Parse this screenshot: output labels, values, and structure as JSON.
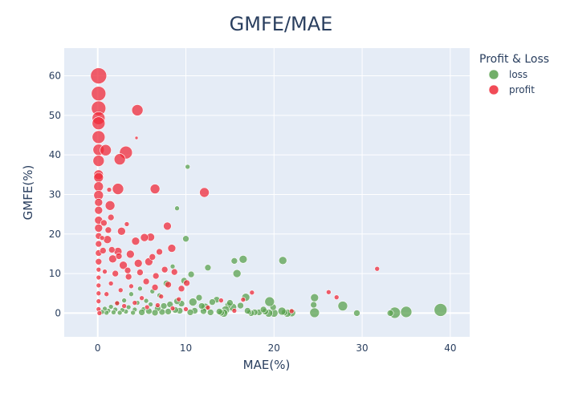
{
  "chart_data": {
    "type": "scatter",
    "title": "GMFE/MAE",
    "xlabel": "MAE(%)",
    "ylabel": "GMFE(%)",
    "xlim": [
      -3.8,
      42.2
    ],
    "ylim": [
      -6,
      67
    ],
    "xticks": [
      0,
      10,
      20,
      30,
      40
    ],
    "yticks": [
      0,
      10,
      20,
      30,
      40,
      50,
      60
    ],
    "grid": true,
    "legend": {
      "title": "Profit & Loss",
      "placement": "top-right outside"
    },
    "colors": {
      "loss": "#59a14f",
      "profit": "#ef2b3a",
      "plot_bg": "#e5ecf6",
      "text": "#2a3f5f"
    },
    "series": [
      {
        "name": "loss",
        "color": "#59a14f",
        "points": [
          [
            38.9,
            0.8,
            8
          ],
          [
            35.0,
            0.3,
            7
          ],
          [
            33.7,
            0.1,
            7
          ],
          [
            33.2,
            0.0,
            4
          ],
          [
            29.4,
            0.0,
            4
          ],
          [
            27.8,
            1.8,
            6
          ],
          [
            24.6,
            3.9,
            5
          ],
          [
            24.5,
            2.1,
            4
          ],
          [
            24.6,
            0.1,
            6
          ],
          [
            22.0,
            0.1,
            5
          ],
          [
            21.5,
            0.0,
            5
          ],
          [
            21.2,
            0.2,
            4
          ],
          [
            21.0,
            13.3,
            5
          ],
          [
            20.9,
            0.5,
            5
          ],
          [
            20.0,
            0.0,
            5
          ],
          [
            19.9,
            1.5,
            4
          ],
          [
            19.5,
            2.9,
            6
          ],
          [
            19.4,
            0.0,
            5
          ],
          [
            19.0,
            0.4,
            4
          ],
          [
            18.3,
            0.2,
            4
          ],
          [
            17.8,
            0.2,
            4
          ],
          [
            17.4,
            0.0,
            4
          ],
          [
            17.2,
            0.2,
            3
          ],
          [
            16.8,
            4.0,
            5
          ],
          [
            16.5,
            13.6,
            5
          ],
          [
            16.2,
            1.9,
            4
          ],
          [
            15.8,
            10.0,
            5
          ],
          [
            15.5,
            13.2,
            4
          ],
          [
            15.3,
            1.5,
            5
          ],
          [
            14.8,
            2.0,
            4
          ],
          [
            14.5,
            0.8,
            5
          ],
          [
            14.3,
            0.0,
            5
          ],
          [
            14.0,
            0.1,
            4
          ],
          [
            13.5,
            3.4,
            4
          ],
          [
            13.0,
            2.8,
            4
          ],
          [
            12.8,
            0.2,
            4
          ],
          [
            12.5,
            11.5,
            4
          ],
          [
            12.2,
            1.5,
            5
          ],
          [
            12.0,
            0.5,
            4
          ],
          [
            11.5,
            3.9,
            4
          ],
          [
            11.0,
            0.6,
            4
          ],
          [
            10.8,
            2.8,
            5
          ],
          [
            10.5,
            0.2,
            4
          ],
          [
            10.2,
            37.0,
            3
          ],
          [
            10.0,
            18.8,
            4
          ],
          [
            9.8,
            8.2,
            4
          ],
          [
            9.5,
            2.4,
            4
          ],
          [
            9.3,
            0.6,
            4
          ],
          [
            9.0,
            26.5,
            3
          ],
          [
            9.0,
            3.0,
            4
          ],
          [
            8.8,
            0.8,
            4
          ],
          [
            8.5,
            11.8,
            3
          ],
          [
            8.2,
            2.2,
            4
          ],
          [
            8.0,
            0.4,
            4
          ],
          [
            7.8,
            7.5,
            4
          ],
          [
            7.5,
            1.8,
            4
          ],
          [
            7.3,
            0.3,
            4
          ],
          [
            7.0,
            4.5,
            3
          ],
          [
            6.8,
            1.2,
            4
          ],
          [
            6.5,
            0.1,
            4
          ],
          [
            6.2,
            5.5,
            3
          ],
          [
            6.0,
            2.2,
            3
          ],
          [
            5.8,
            0.5,
            4
          ],
          [
            5.5,
            3.1,
            3
          ],
          [
            5.2,
            1.0,
            3
          ],
          [
            5.0,
            0.2,
            4
          ],
          [
            4.8,
            6.2,
            3
          ],
          [
            4.5,
            2.6,
            3
          ],
          [
            4.2,
            0.9,
            3
          ],
          [
            4.0,
            0.1,
            3
          ],
          [
            3.8,
            4.8,
            3
          ],
          [
            3.5,
            1.5,
            3
          ],
          [
            3.2,
            0.4,
            3
          ],
          [
            3.0,
            3.2,
            3
          ],
          [
            2.8,
            0.8,
            3
          ],
          [
            2.5,
            0.1,
            3
          ],
          [
            2.2,
            2.5,
            3
          ],
          [
            2.0,
            0.9,
            3
          ],
          [
            1.8,
            0.2,
            3
          ],
          [
            1.5,
            1.6,
            3
          ],
          [
            1.2,
            0.6,
            3
          ],
          [
            1.0,
            0.1,
            3
          ],
          [
            0.8,
            1.1,
            3
          ],
          [
            0.5,
            0.3,
            3
          ],
          [
            10.6,
            9.8,
            4
          ],
          [
            11.8,
            1.8,
            4
          ],
          [
            13.8,
            0.4,
            4
          ],
          [
            15.0,
            2.6,
            4
          ],
          [
            17.0,
            0.6,
            4
          ],
          [
            18.8,
            0.9,
            4
          ]
        ]
      },
      {
        "name": "profit",
        "color": "#ef2b3a",
        "points": [
          [
            0.1,
            60.0,
            10
          ],
          [
            0.1,
            55.5,
            9
          ],
          [
            0.1,
            51.8,
            9
          ],
          [
            0.1,
            49.3,
            8
          ],
          [
            0.1,
            48.0,
            8
          ],
          [
            0.1,
            44.5,
            8
          ],
          [
            0.1,
            41.3,
            7
          ],
          [
            0.1,
            38.5,
            7
          ],
          [
            0.1,
            35.0,
            6
          ],
          [
            0.1,
            34.3,
            6
          ],
          [
            0.1,
            32.0,
            6
          ],
          [
            0.1,
            29.8,
            6
          ],
          [
            0.1,
            28.0,
            5
          ],
          [
            0.1,
            26.0,
            5
          ],
          [
            0.1,
            23.5,
            5
          ],
          [
            0.1,
            21.5,
            5
          ],
          [
            0.1,
            19.5,
            4
          ],
          [
            0.1,
            17.5,
            4
          ],
          [
            0.1,
            15.2,
            4
          ],
          [
            0.1,
            13.0,
            4
          ],
          [
            0.1,
            11.0,
            3
          ],
          [
            0.1,
            9.0,
            3
          ],
          [
            0.1,
            7.0,
            3
          ],
          [
            0.1,
            5.0,
            3
          ],
          [
            0.1,
            3.0,
            3
          ],
          [
            0.1,
            1.0,
            3
          ],
          [
            0.2,
            0.0,
            3
          ],
          [
            4.5,
            51.3,
            7
          ],
          [
            3.2,
            40.6,
            8
          ],
          [
            0.9,
            41.2,
            7
          ],
          [
            2.5,
            38.9,
            7
          ],
          [
            2.3,
            31.4,
            7
          ],
          [
            6.5,
            31.4,
            6
          ],
          [
            12.1,
            30.5,
            6
          ],
          [
            1.4,
            27.2,
            6
          ],
          [
            2.7,
            20.7,
            5
          ],
          [
            7.9,
            22.0,
            5
          ],
          [
            6.0,
            19.2,
            5
          ],
          [
            4.3,
            18.2,
            5
          ],
          [
            1.1,
            18.6,
            5
          ],
          [
            2.3,
            15.6,
            5
          ],
          [
            3.7,
            14.9,
            5
          ],
          [
            5.8,
            13.0,
            5
          ],
          [
            8.4,
            16.4,
            5
          ],
          [
            4.6,
            12.6,
            5
          ],
          [
            2.9,
            12.1,
            5
          ],
          [
            1.7,
            13.7,
            5
          ],
          [
            31.7,
            11.2,
            3
          ],
          [
            26.2,
            5.3,
            3
          ],
          [
            17.5,
            5.2,
            3
          ],
          [
            16.5,
            3.4,
            3
          ],
          [
            4.4,
            44.3,
            2
          ],
          [
            3.3,
            22.5,
            3
          ],
          [
            1.5,
            24.2,
            4
          ],
          [
            1.2,
            21.0,
            4
          ],
          [
            2.0,
            10.0,
            4
          ],
          [
            3.5,
            9.2,
            4
          ],
          [
            5.5,
            8.0,
            4
          ],
          [
            6.5,
            6.5,
            4
          ],
          [
            8.0,
            7.2,
            4
          ],
          [
            9.5,
            6.2,
            4
          ],
          [
            9.2,
            3.5,
            3
          ],
          [
            7.2,
            4.2,
            3
          ],
          [
            5.0,
            3.8,
            3
          ],
          [
            3.8,
            6.8,
            3
          ],
          [
            2.6,
            5.8,
            3
          ],
          [
            1.5,
            7.5,
            3
          ],
          [
            0.8,
            10.5,
            3
          ],
          [
            1.0,
            4.8,
            3
          ],
          [
            2.2,
            2.5,
            3
          ],
          [
            3.0,
            1.8,
            3
          ],
          [
            4.2,
            2.6,
            3
          ],
          [
            5.6,
            1.5,
            3
          ],
          [
            6.8,
            2.0,
            3
          ],
          [
            8.5,
            1.2,
            3
          ],
          [
            10.0,
            1.0,
            3
          ],
          [
            12.5,
            1.4,
            3
          ],
          [
            14.0,
            3.2,
            3
          ],
          [
            0.6,
            15.8,
            4
          ],
          [
            0.7,
            22.8,
            4
          ],
          [
            1.6,
            16.0,
            4
          ],
          [
            2.4,
            14.4,
            4
          ],
          [
            3.4,
            10.8,
            4
          ],
          [
            4.8,
            10.3,
            4
          ],
          [
            5.3,
            19.1,
            5
          ],
          [
            6.2,
            14.2,
            4
          ],
          [
            7.0,
            15.5,
            4
          ],
          [
            6.6,
            9.4,
            4
          ],
          [
            7.6,
            11.0,
            4
          ],
          [
            8.7,
            10.4,
            4
          ],
          [
            10.1,
            7.6,
            4
          ],
          [
            1.3,
            31.2,
            3
          ],
          [
            0.5,
            19.0,
            3
          ],
          [
            27.1,
            4.0,
            3
          ],
          [
            22.0,
            0.5,
            3
          ],
          [
            15.5,
            0.6,
            3
          ]
        ]
      }
    ]
  }
}
